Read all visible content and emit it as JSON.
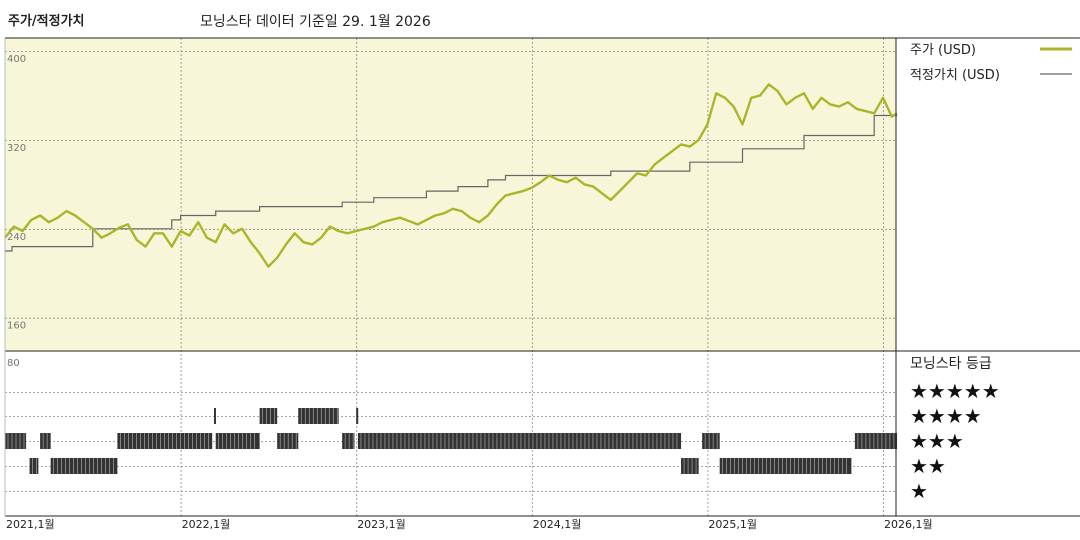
{
  "header": {
    "title": "주가/적정가치",
    "subtitle": "모닝스타 데이터 기준일 29. 1월 2026"
  },
  "colors": {
    "price_line": "#aab52b",
    "fair_value_line": "#666666",
    "upper_panel_bg": "#f8f6d8",
    "rating_bars": "#333333"
  },
  "chart_data": [
    {
      "type": "line",
      "x_labels": [
        "2021,1월",
        "2022,1월",
        "2023,1월",
        "2024,1월",
        "2025,1월",
        "2026,1월"
      ],
      "y_ticks": [
        400,
        320,
        240,
        160
      ],
      "ylim": [
        130,
        410
      ],
      "grid": true,
      "legend": [
        {
          "label": "주가 (USD)",
          "series": "price"
        },
        {
          "label": "적정가치 (USD)",
          "series": "fair_value"
        }
      ],
      "series": [
        {
          "name": "주가 (USD)",
          "key": "price",
          "x": [
            2021.0,
            2021.05,
            2021.1,
            2021.15,
            2021.2,
            2021.25,
            2021.3,
            2021.35,
            2021.4,
            2021.45,
            2021.5,
            2021.55,
            2021.6,
            2021.65,
            2021.7,
            2021.75,
            2021.8,
            2021.85,
            2021.9,
            2021.95,
            2022.0,
            2022.05,
            2022.1,
            2022.15,
            2022.2,
            2022.25,
            2022.3,
            2022.35,
            2022.4,
            2022.45,
            2022.5,
            2022.55,
            2022.6,
            2022.65,
            2022.7,
            2022.75,
            2022.8,
            2022.85,
            2022.9,
            2022.95,
            2023.0,
            2023.05,
            2023.1,
            2023.15,
            2023.2,
            2023.25,
            2023.3,
            2023.35,
            2023.4,
            2023.45,
            2023.5,
            2023.55,
            2023.6,
            2023.65,
            2023.7,
            2023.75,
            2023.8,
            2023.85,
            2023.9,
            2023.95,
            2024.0,
            2024.05,
            2024.1,
            2024.15,
            2024.2,
            2024.25,
            2024.3,
            2024.35,
            2024.4,
            2024.45,
            2024.5,
            2024.55,
            2024.6,
            2024.65,
            2024.7,
            2024.75,
            2024.8,
            2024.85,
            2024.9,
            2024.95,
            2025.0,
            2025.05,
            2025.1,
            2025.15,
            2025.2,
            2025.25,
            2025.3,
            2025.35,
            2025.4,
            2025.45,
            2025.5,
            2025.55,
            2025.6,
            2025.65,
            2025.7,
            2025.75,
            2025.8,
            2025.85,
            2025.9,
            2025.95,
            2026.0,
            2026.05,
            2026.08
          ],
          "values": [
            232,
            242,
            238,
            248,
            252,
            246,
            250,
            256,
            252,
            246,
            240,
            232,
            236,
            241,
            244,
            230,
            224,
            236,
            236,
            224,
            238,
            234,
            246,
            232,
            228,
            244,
            236,
            240,
            228,
            218,
            206,
            214,
            226,
            236,
            228,
            226,
            232,
            242,
            238,
            236,
            238,
            240,
            242,
            246,
            248,
            250,
            247,
            244,
            248,
            252,
            254,
            258,
            256,
            250,
            246,
            252,
            262,
            270,
            272,
            274,
            277,
            282,
            288,
            284,
            282,
            286,
            280,
            278,
            272,
            266,
            274,
            282,
            290,
            288,
            298,
            304,
            310,
            316,
            314,
            320,
            334,
            362,
            358,
            350,
            334,
            358,
            360,
            370,
            364,
            352,
            358,
            362,
            348,
            358,
            352,
            350,
            354,
            348,
            346,
            344,
            358,
            341,
            344
          ]
        },
        {
          "name": "적정가치 (USD)",
          "key": "fair_value",
          "x": [
            2021.0,
            2021.04,
            2021.04,
            2021.12,
            2021.12,
            2021.5,
            2021.5,
            2021.95,
            2021.95,
            2022.0,
            2022.0,
            2022.2,
            2022.2,
            2022.45,
            2022.45,
            2022.92,
            2022.92,
            2023.1,
            2023.1,
            2023.4,
            2023.4,
            2023.58,
            2023.58,
            2023.75,
            2023.75,
            2023.85,
            2023.85,
            2024.45,
            2024.45,
            2024.9,
            2024.9,
            2025.2,
            2025.2,
            2025.55,
            2025.55,
            2025.95,
            2025.95,
            2026.08
          ],
          "values": [
            220,
            220,
            224,
            224,
            224,
            224,
            240,
            240,
            248,
            248,
            252,
            252,
            256,
            256,
            260,
            260,
            264,
            264,
            268,
            268,
            274,
            274,
            278,
            278,
            284,
            284,
            288,
            288,
            292,
            292,
            300,
            300,
            312,
            312,
            324,
            324,
            342,
            342
          ]
        }
      ]
    },
    {
      "type": "heatmap",
      "title": "모닝스타 등급",
      "y_categories": [
        "★★★★★",
        "★★★★",
        "★★★",
        "★★",
        "★"
      ],
      "periods": [
        {
          "rating": 3,
          "start": 2021.0,
          "end": 2021.12
        },
        {
          "rating": 2,
          "start": 2021.14,
          "end": 2021.19
        },
        {
          "rating": 3,
          "start": 2021.2,
          "end": 2021.26
        },
        {
          "rating": 2,
          "start": 2021.26,
          "end": 2021.64
        },
        {
          "rating": 3,
          "start": 2021.64,
          "end": 2022.18
        },
        {
          "rating": 4,
          "start": 2022.19,
          "end": 2022.2
        },
        {
          "rating": 3,
          "start": 2022.2,
          "end": 2022.45
        },
        {
          "rating": 4,
          "start": 2022.45,
          "end": 2022.55
        },
        {
          "rating": 3,
          "start": 2022.55,
          "end": 2022.67
        },
        {
          "rating": 4,
          "start": 2022.67,
          "end": 2022.9
        },
        {
          "rating": 3,
          "start": 2022.92,
          "end": 2022.99
        },
        {
          "rating": 4,
          "start": 2023.0,
          "end": 2023.01
        },
        {
          "rating": 3,
          "start": 2023.01,
          "end": 2024.85
        },
        {
          "rating": 2,
          "start": 2024.85,
          "end": 2024.95
        },
        {
          "rating": 3,
          "start": 2024.97,
          "end": 2025.07
        },
        {
          "rating": 2,
          "start": 2025.07,
          "end": 2025.82
        },
        {
          "rating": 3,
          "start": 2025.84,
          "end": 2026.08
        }
      ]
    }
  ]
}
